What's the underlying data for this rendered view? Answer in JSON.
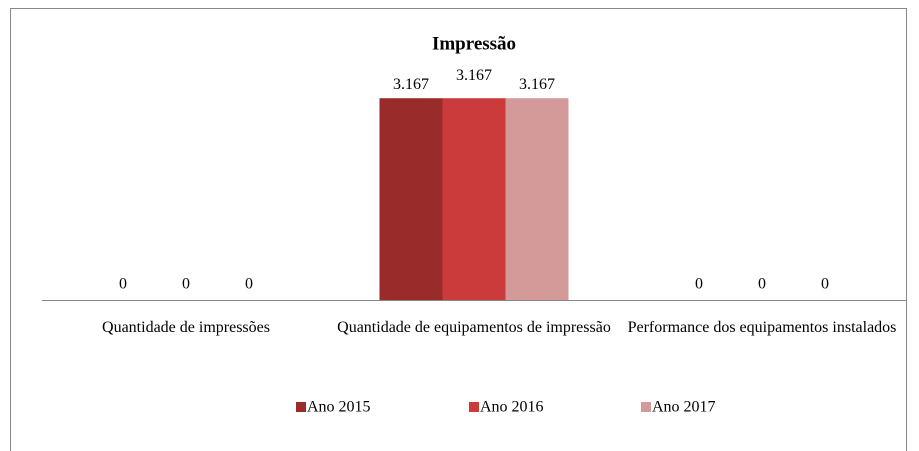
{
  "chart_data": {
    "type": "bar",
    "title": "Impressão",
    "categories": [
      "Quantidade de impressões",
      "Quantidade de equipamentos de impressão",
      "Performance dos equipamentos instalados"
    ],
    "series": [
      {
        "name": "Ano 2015",
        "color": "#9a2b2b",
        "values": [
          0,
          3167,
          0
        ],
        "value_labels": [
          "0",
          "3.167",
          "0"
        ]
      },
      {
        "name": "Ano 2016",
        "color": "#cc3b3b",
        "values": [
          0,
          3167,
          0
        ],
        "value_labels": [
          "0",
          "3.167",
          "0"
        ]
      },
      {
        "name": "Ano 2017",
        "color": "#d49a99",
        "values": [
          0,
          3167,
          0
        ],
        "value_labels": [
          "0",
          "3.167",
          "0"
        ]
      }
    ],
    "ylim": [
      0,
      3500
    ],
    "legend": "bottom"
  }
}
